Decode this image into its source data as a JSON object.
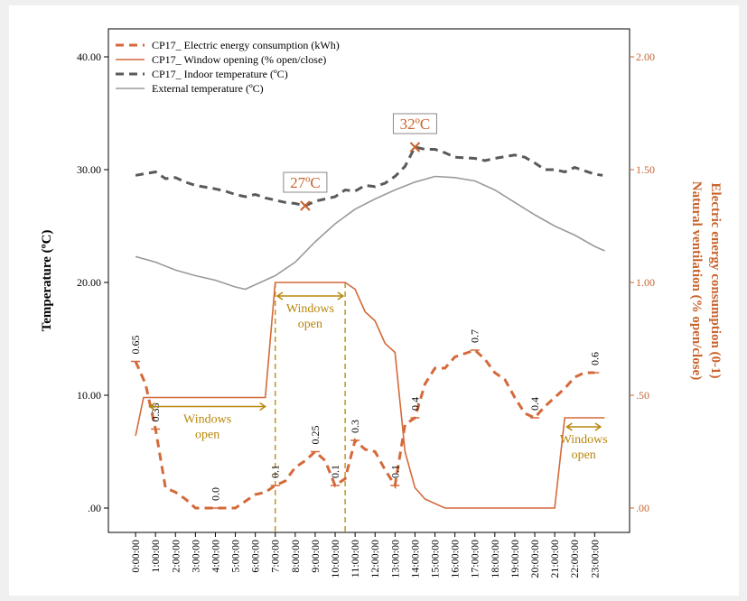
{
  "chart_data": {
    "type": "line",
    "y_label": "Temperature (ºC)",
    "y2_label": [
      "Electric energy consumption (0-1)",
      "Natural ventilation (% open/close)"
    ],
    "xlim": [
      -1.36,
      24.75
    ],
    "xticks": [
      {
        "value": 0,
        "label": "0:00:00"
      },
      {
        "value": 1,
        "label": "1:00:00"
      },
      {
        "value": 2,
        "label": "2:00:00"
      },
      {
        "value": 3,
        "label": "3:00:00"
      },
      {
        "value": 4,
        "label": "4:00:00"
      },
      {
        "value": 5,
        "label": "5:00:00"
      },
      {
        "value": 6,
        "label": "6:00:00"
      },
      {
        "value": 7,
        "label": "7:00:00"
      },
      {
        "value": 8,
        "label": "8:00:00"
      },
      {
        "value": 9,
        "label": "9:00:00"
      },
      {
        "value": 10,
        "label": "10:00:00"
      },
      {
        "value": 11,
        "label": "11:00:00"
      },
      {
        "value": 12,
        "label": "12:00:00"
      },
      {
        "value": 13,
        "label": "13:00:00"
      },
      {
        "value": 14,
        "label": "14:00:00"
      },
      {
        "value": 15,
        "label": "15:00:00"
      },
      {
        "value": 16,
        "label": "16:00:00"
      },
      {
        "value": 17,
        "label": "17:00:00"
      },
      {
        "value": 18,
        "label": "18:00:00"
      },
      {
        "value": 19,
        "label": "19:00:00"
      },
      {
        "value": 20,
        "label": "20:00:00"
      },
      {
        "value": 21,
        "label": "21:00:00"
      },
      {
        "value": 22,
        "label": "22:00:00"
      },
      {
        "value": 23,
        "label": "23:00:00"
      }
    ],
    "ylim": [
      -2.16,
      42.48
    ],
    "yticks": [
      {
        "value": 0,
        "label": ".00"
      },
      {
        "value": 10,
        "label": "10.00"
      },
      {
        "value": 20,
        "label": "20.00"
      },
      {
        "value": 30,
        "label": "30.00"
      },
      {
        "value": 40,
        "label": "40.00"
      }
    ],
    "y2lim": [
      -0.108,
      2.124
    ],
    "y2ticks": [
      {
        "value": 0,
        "label": ".00"
      },
      {
        "value": 0.5,
        "label": ".50"
      },
      {
        "value": 1,
        "label": "1.00"
      },
      {
        "value": 1.5,
        "label": "1.50"
      },
      {
        "value": 2,
        "label": "2.00"
      }
    ],
    "legend": "top-left",
    "series": [
      {
        "name": "CP17_ Electric energy consumption (kWh)",
        "color": "#d4693a",
        "line_style": "dashed",
        "axis": "y2",
        "x": [
          0,
          0.5,
          1,
          1.5,
          2,
          2.5,
          3,
          4,
          5,
          5.5,
          6,
          6.5,
          7,
          7.5,
          8,
          8.5,
          9,
          9.5,
          10,
          10.5,
          11,
          11.5,
          12,
          12.5,
          13,
          13.5,
          14,
          14.5,
          15,
          15.5,
          16,
          17,
          17.5,
          18,
          18.5,
          19,
          19.5,
          20,
          20.5,
          21,
          21.5,
          22,
          22.5,
          23
        ],
        "values": [
          0.65,
          0.55,
          0.35,
          0.09,
          0.07,
          0.04,
          0,
          0,
          0,
          0.03,
          0.06,
          0.07,
          0.1,
          0.12,
          0.18,
          0.21,
          0.25,
          0.21,
          0.1,
          0.13,
          0.3,
          0.26,
          0.25,
          0.17,
          0.1,
          0.37,
          0.4,
          0.55,
          0.62,
          0.62,
          0.67,
          0.7,
          0.66,
          0.6,
          0.57,
          0.49,
          0.42,
          0.4,
          0.45,
          0.49,
          0.53,
          0.58,
          0.6,
          0.6
        ],
        "value_labels": [
          "0.65",
          null,
          "0.35",
          null,
          null,
          null,
          null,
          "0.0",
          null,
          null,
          null,
          null,
          "0.1",
          null,
          null,
          null,
          "0.25",
          null,
          "0.1",
          null,
          "0.3",
          null,
          null,
          null,
          "0.1",
          null,
          "0.4",
          null,
          null,
          null,
          null,
          "0.7",
          null,
          null,
          null,
          null,
          null,
          "0.4",
          null,
          null,
          null,
          null,
          null,
          "0.6"
        ]
      },
      {
        "name": "CP17_ Window opening (% open/close)",
        "color": "#d4693a",
        "line_style": "solid",
        "axis": "y2",
        "x": [
          0,
          0.4,
          6.5,
          7,
          10.5,
          11,
          11.5,
          12,
          12.5,
          13,
          13.5,
          14,
          14.5,
          15,
          15.5,
          21,
          21.5,
          23.5
        ],
        "values": [
          0.32,
          0.49,
          0.49,
          1.0,
          1.0,
          0.97,
          0.87,
          0.83,
          0.73,
          0.69,
          0.25,
          0.09,
          0.04,
          0.02,
          0,
          0,
          0.4,
          0.4
        ]
      },
      {
        "name": "CP17_ Indoor temperature (ºC)",
        "color": "#5a5a5a",
        "line_style": "dashed",
        "x": [
          0,
          1,
          1.5,
          2,
          2.5,
          3,
          4,
          4.5,
          5,
          5.5,
          6,
          6.5,
          7,
          7.5,
          8,
          8.5,
          9,
          9.5,
          10,
          10.5,
          11,
          11.5,
          12,
          12.5,
          13,
          13.5,
          14,
          14.5,
          15,
          15.5,
          16,
          17,
          17.5,
          18,
          19,
          19.5,
          20,
          20.5,
          21,
          21.5,
          22,
          22.5,
          23,
          23.4
        ],
        "values": [
          29.5,
          29.8,
          29.2,
          29.3,
          28.9,
          28.6,
          28.3,
          28.1,
          27.8,
          27.6,
          27.8,
          27.5,
          27.3,
          27.1,
          27.0,
          26.8,
          27.2,
          27.4,
          27.6,
          28.2,
          28.1,
          28.6,
          28.5,
          28.8,
          29.4,
          30.3,
          32.0,
          31.8,
          31.8,
          31.5,
          31.1,
          31.0,
          30.8,
          31.0,
          31.3,
          31.1,
          30.6,
          30.0,
          30.0,
          29.8,
          30.2,
          29.9,
          29.6,
          29.5
        ]
      },
      {
        "name": "External temperature (ºC)",
        "color": "#9a9a9a",
        "line_style": "solid",
        "x": [
          0,
          1,
          2,
          3,
          4,
          5,
          5.5,
          6,
          7,
          8,
          9,
          10,
          11,
          12,
          13,
          14,
          15,
          16,
          17,
          18,
          19,
          20,
          21,
          22,
          23,
          23.5
        ],
        "values": [
          22.3,
          21.8,
          21.1,
          20.6,
          20.2,
          19.6,
          19.4,
          19.8,
          20.6,
          21.8,
          23.6,
          25.2,
          26.5,
          27.4,
          28.2,
          28.9,
          29.4,
          29.3,
          29.0,
          28.2,
          27.1,
          26.0,
          25.0,
          24.2,
          23.2,
          22.8
        ]
      }
    ],
    "annotations": [
      "27ºC",
      "32ºC",
      "Windows open",
      "Windows open",
      "Windows open"
    ]
  }
}
